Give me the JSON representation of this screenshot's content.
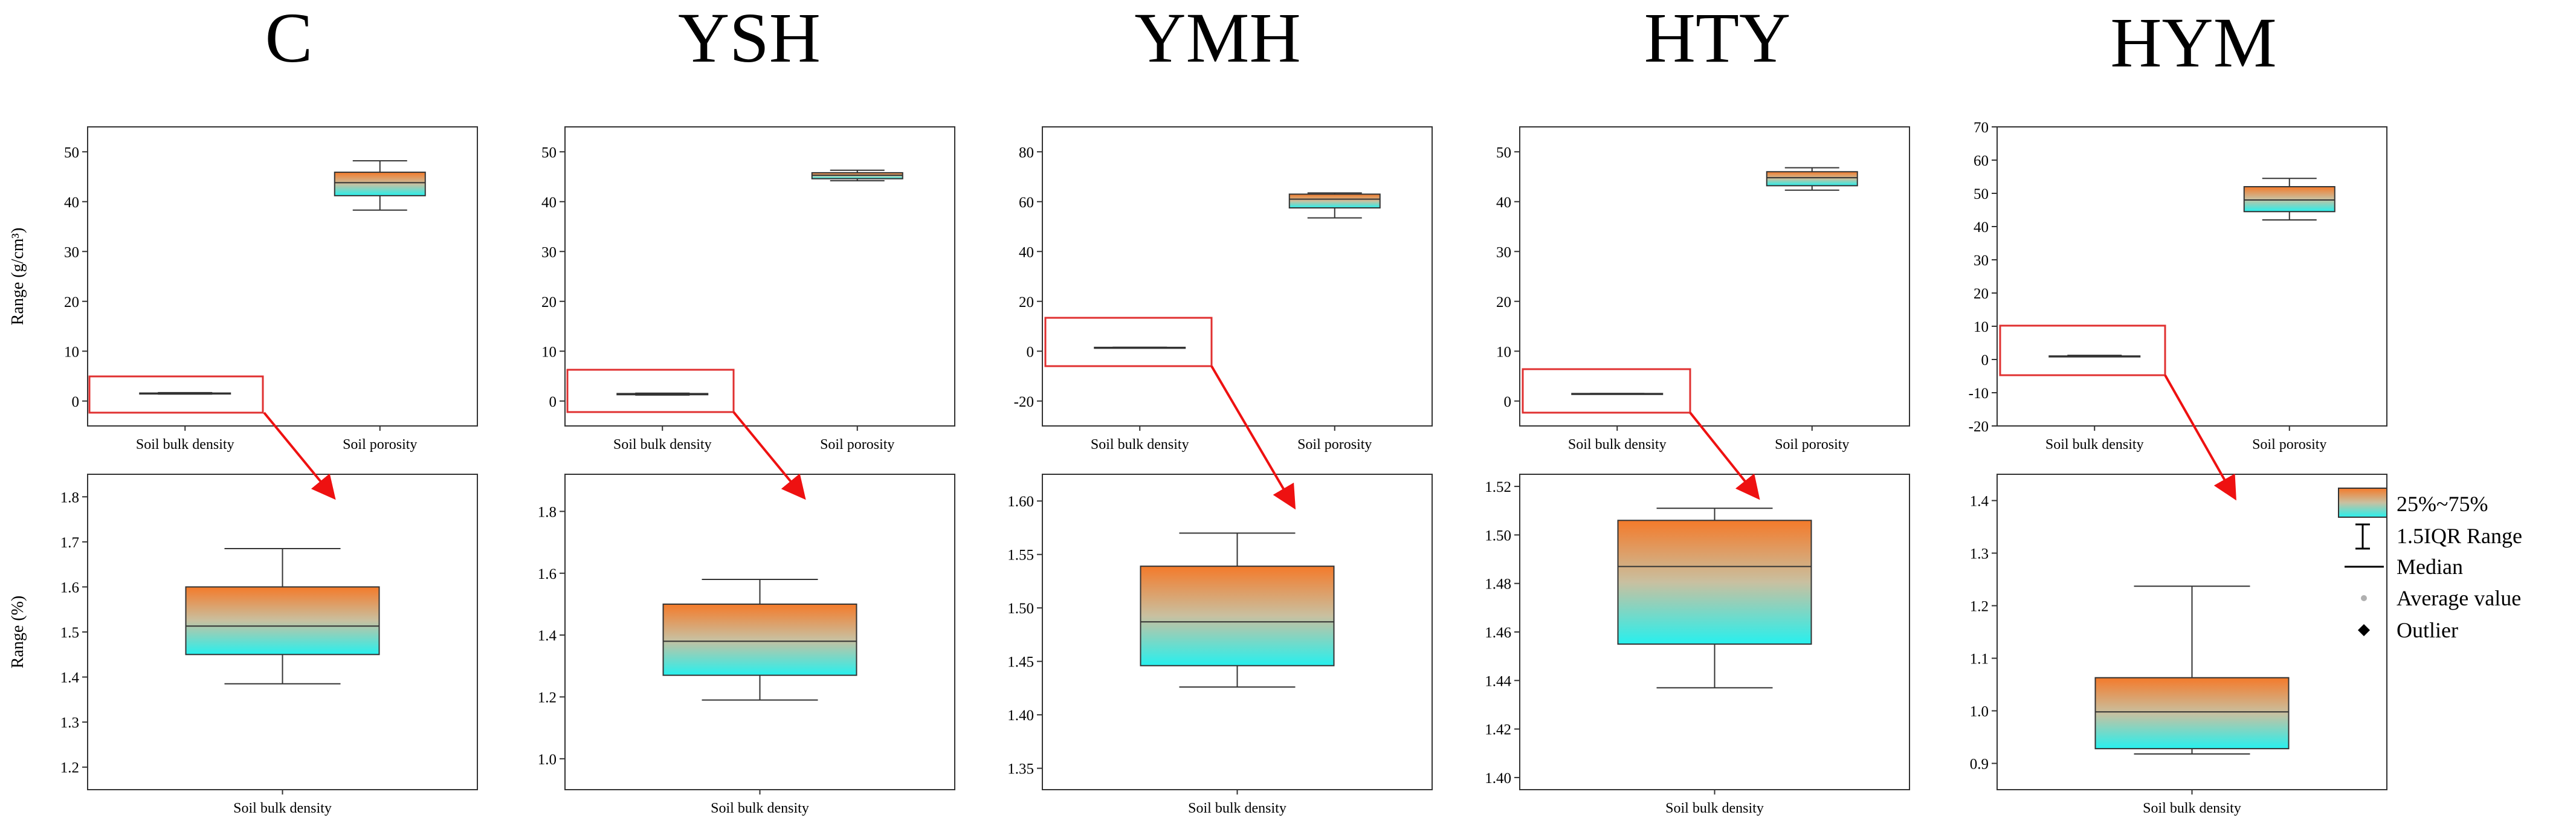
{
  "colors": {
    "top": "#f47a2a",
    "bottom": "#27f0ee",
    "frame": "#333333",
    "highlight": "#e03030",
    "arrow": "#ee1111"
  },
  "legend": {
    "box": "25%~75%",
    "range": "1.5IQR  Range",
    "median": "Median",
    "mean": "Average value",
    "outlier": "Outlier"
  },
  "chart_data": [
    {
      "type": "box",
      "title": "C",
      "top": {
        "ylabel": "Range (g/cm³)",
        "ylim": [
          -5,
          55
        ],
        "yticks": [
          0,
          10,
          20,
          30,
          40,
          50
        ],
        "categories": [
          "Soil bulk density",
          "Soil porosity"
        ],
        "boxes": [
          {
            "min": 1.39,
            "q1": 1.45,
            "median": 1.51,
            "q3": 1.6,
            "max": 1.68
          },
          {
            "min": 38.3,
            "q1": 41.2,
            "median": 43.8,
            "q3": 45.9,
            "max": 48.2
          }
        ]
      },
      "bottom": {
        "ylabel": "Range (%)",
        "ylim": [
          1.15,
          1.85
        ],
        "yticks": [
          1.2,
          1.3,
          1.4,
          1.5,
          1.6,
          1.7,
          1.8
        ],
        "categories": [
          "Soil bulk density"
        ],
        "boxes": [
          {
            "min": 1.385,
            "q1": 1.45,
            "median": 1.513,
            "q3": 1.6,
            "max": 1.685
          }
        ]
      }
    },
    {
      "type": "box",
      "title": "YSH",
      "top": {
        "ylabel": "",
        "ylim": [
          -5,
          55
        ],
        "yticks": [
          0,
          10,
          20,
          30,
          40,
          50
        ],
        "categories": [
          "Soil bulk density",
          "Soil porosity"
        ],
        "boxes": [
          {
            "min": 1.19,
            "q1": 1.27,
            "median": 1.38,
            "q3": 1.5,
            "max": 1.58
          },
          {
            "min": 44.2,
            "q1": 44.6,
            "median": 45.3,
            "q3": 45.8,
            "max": 46.3
          }
        ]
      },
      "bottom": {
        "ylabel": "",
        "ylim": [
          0.9,
          1.92
        ],
        "yticks": [
          1.0,
          1.2,
          1.4,
          1.6,
          1.8
        ],
        "categories": [
          "Soil bulk density"
        ],
        "boxes": [
          {
            "min": 1.19,
            "q1": 1.27,
            "median": 1.38,
            "q3": 1.5,
            "max": 1.58
          }
        ]
      }
    },
    {
      "type": "box",
      "title": "YMH",
      "top": {
        "ylabel": "",
        "ylim": [
          -30,
          90
        ],
        "yticks": [
          -20,
          0,
          20,
          40,
          60,
          80
        ],
        "categories": [
          "Soil bulk density",
          "Soil porosity"
        ],
        "boxes": [
          {
            "min": 1.43,
            "q1": 1.45,
            "median": 1.49,
            "q3": 1.54,
            "max": 1.57
          },
          {
            "min": 53.5,
            "q1": 57.5,
            "median": 61.0,
            "q3": 63.0,
            "max": 63.5
          }
        ]
      },
      "bottom": {
        "ylabel": "",
        "ylim": [
          1.33,
          1.625
        ],
        "yticks": [
          1.35,
          1.4,
          1.45,
          1.5,
          1.55,
          1.6
        ],
        "categories": [
          "Soil bulk density"
        ],
        "boxes": [
          {
            "min": 1.426,
            "q1": 1.446,
            "median": 1.487,
            "q3": 1.539,
            "max": 1.57
          }
        ]
      }
    },
    {
      "type": "box",
      "title": "HTY",
      "top": {
        "ylabel": "",
        "ylim": [
          -5,
          55
        ],
        "yticks": [
          0,
          10,
          20,
          30,
          40,
          50
        ],
        "categories": [
          "Soil bulk density",
          "Soil porosity"
        ],
        "boxes": [
          {
            "min": 1.44,
            "q1": 1.45,
            "median": 1.49,
            "q3": 1.51,
            "max": 1.51
          },
          {
            "min": 42.3,
            "q1": 43.2,
            "median": 44.8,
            "q3": 46.0,
            "max": 46.8
          }
        ]
      },
      "bottom": {
        "ylabel": "",
        "ylim": [
          1.395,
          1.525
        ],
        "yticks": [
          1.4,
          1.42,
          1.44,
          1.46,
          1.48,
          1.5,
          1.52
        ],
        "categories": [
          "Soil bulk density"
        ],
        "boxes": [
          {
            "min": 1.437,
            "q1": 1.455,
            "median": 1.487,
            "q3": 1.506,
            "max": 1.511
          }
        ]
      }
    },
    {
      "type": "box",
      "title": "HYM",
      "top": {
        "ylabel": "",
        "ylim": [
          -20,
          70
        ],
        "yticks": [
          -20,
          -10,
          0,
          10,
          20,
          30,
          40,
          50,
          60,
          70
        ],
        "categories": [
          "Soil bulk density",
          "Soil porosity"
        ],
        "boxes": [
          {
            "min": 0.92,
            "q1": 0.93,
            "median": 1.0,
            "q3": 1.06,
            "max": 1.24
          },
          {
            "min": 42.0,
            "q1": 44.5,
            "median": 48.0,
            "q3": 52.0,
            "max": 54.5
          }
        ]
      },
      "bottom": {
        "ylabel": "",
        "ylim": [
          0.85,
          1.45
        ],
        "yticks": [
          0.9,
          1.0,
          1.1,
          1.2,
          1.3,
          1.4
        ],
        "categories": [
          "Soil bulk density"
        ],
        "boxes": [
          {
            "min": 0.918,
            "q1": 0.928,
            "median": 0.998,
            "q3": 1.063,
            "max": 1.237
          }
        ]
      }
    }
  ]
}
